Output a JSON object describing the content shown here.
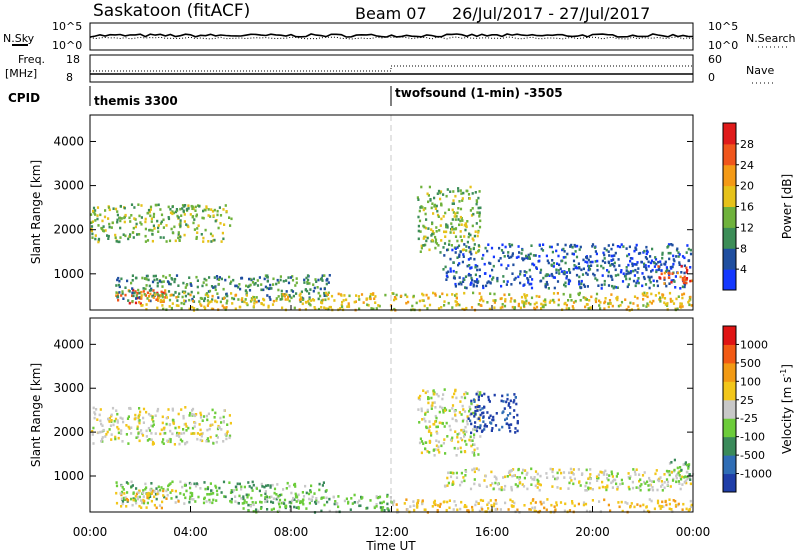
{
  "header": {
    "station": "Saskatoon (fitACF)",
    "beam": "Beam 07",
    "date_range": "26/Jul/2017 - 27/Jul/2017"
  },
  "top_panels": {
    "nsky_label": "N.Sky",
    "nsky_ticks": [
      "10^5",
      "10^0"
    ],
    "nsearch_label": "N.Search",
    "nsearch_ticks": [
      "10^5",
      "10^0"
    ],
    "freq_label_1": "Freq.",
    "freq_label_2": "[MHz]",
    "freq_ticks": [
      "18",
      "8"
    ],
    "nave_label": "Nave",
    "nave_ticks": [
      "60",
      "0"
    ],
    "cpid_label": "CPID",
    "cpid_segments": [
      {
        "label": "themis 3300",
        "start_hour": 0
      },
      {
        "label": "twofsound (1-min) -3505",
        "start_hour": 12
      }
    ]
  },
  "x_axis": {
    "label": "Time UT",
    "ticks": [
      "00:00",
      "04:00",
      "08:00",
      "12:00",
      "16:00",
      "20:00",
      "00:00"
    ]
  },
  "chart_data": [
    {
      "type": "heatmap",
      "quantity": "power",
      "ylabel": "Slant Range [km]",
      "yticks": [
        "1000",
        "2000",
        "3000",
        "4000"
      ],
      "ylim": [
        180,
        4600
      ],
      "xlim": [
        0,
        24
      ],
      "colorbar": {
        "label": "Power [dB]",
        "ticks": [
          "4",
          "8",
          "12",
          "16",
          "20",
          "24",
          "28"
        ],
        "colors": [
          "#1438ff",
          "#1f4e9f",
          "#3c8d57",
          "#6fb23c",
          "#e6c21a",
          "#f49a16",
          "#f0561c",
          "#e01b1b"
        ],
        "range": [
          0,
          32
        ]
      },
      "regions": [
        {
          "t0": 0.0,
          "t1": 5.6,
          "r0": 1750,
          "r1": 2600,
          "level": 3
        },
        {
          "t0": 1.0,
          "t1": 3.0,
          "r0": 350,
          "r1": 700,
          "level": 6
        },
        {
          "t0": 1.0,
          "t1": 9.5,
          "r0": 400,
          "r1": 1000,
          "level": 2
        },
        {
          "t0": 2.0,
          "t1": 24.0,
          "r0": 200,
          "r1": 600,
          "level": 4
        },
        {
          "t0": 13.0,
          "t1": 15.5,
          "r0": 1500,
          "r1": 3000,
          "level": 3
        },
        {
          "t0": 14.0,
          "t1": 24.0,
          "r0": 700,
          "r1": 1700,
          "level": 1
        },
        {
          "t0": 22.5,
          "t1": 24.0,
          "r0": 800,
          "r1": 1200,
          "level": 6
        }
      ]
    },
    {
      "type": "heatmap",
      "quantity": "velocity",
      "ylabel": "Slant Range [km]",
      "yticks": [
        "1000",
        "2000",
        "3000",
        "4000"
      ],
      "ylim": [
        180,
        4600
      ],
      "xlim": [
        0,
        24
      ],
      "colorbar": {
        "label": "Velocity [m s",
        "label_sup": "-1",
        "ticks": [
          "1000",
          "500",
          "100",
          "25",
          "-25",
          "-100",
          "-500",
          "-1000"
        ],
        "colors": [
          "#1f3ea8",
          "#2f6db5",
          "#3a8a5a",
          "#6ccc3a",
          "#c8c8c8",
          "#f2c61a",
          "#f29a14",
          "#f25a14",
          "#e01414"
        ]
      },
      "regions": [
        {
          "t0": 0.0,
          "t1": 5.6,
          "r0": 1750,
          "r1": 2600,
          "level": 4
        },
        {
          "t0": 1.0,
          "t1": 9.5,
          "r0": 400,
          "r1": 900,
          "level": 3
        },
        {
          "t0": 1.0,
          "t1": 3.5,
          "r0": 300,
          "r1": 700,
          "level": 5
        },
        {
          "t0": 6.0,
          "t1": 12.0,
          "r0": 200,
          "r1": 600,
          "level": 3
        },
        {
          "t0": 12.0,
          "t1": 24.0,
          "r0": 200,
          "r1": 500,
          "level": 5
        },
        {
          "t0": 13.0,
          "t1": 15.5,
          "r0": 1500,
          "r1": 3000,
          "level": 4
        },
        {
          "t0": 15.0,
          "t1": 17.0,
          "r0": 2000,
          "r1": 2900,
          "level": 0
        },
        {
          "t0": 14.0,
          "t1": 24.0,
          "r0": 700,
          "r1": 1200,
          "level": 4
        },
        {
          "t0": 23.0,
          "t1": 24.0,
          "r0": 900,
          "r1": 1400,
          "level": 3
        }
      ]
    }
  ]
}
